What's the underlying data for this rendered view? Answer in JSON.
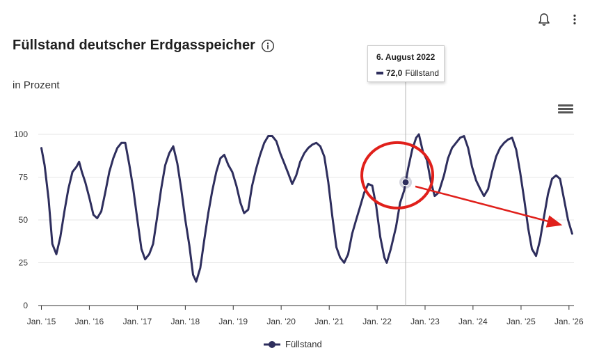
{
  "header": {
    "title": "Füllstand deutscher Erdgasspeicher",
    "subtitle": "in Prozent"
  },
  "icons": {
    "bell": "bell-icon",
    "more": "more-vertical-icon",
    "info": "info-icon",
    "menu": "hamburger-menu-icon"
  },
  "tooltip": {
    "date": "6. August 2022",
    "value": "72,0",
    "series": "Füllstand"
  },
  "colors": {
    "series": "#2e2e5d",
    "annotation": "#e0201b",
    "grid": "#e6e6e6",
    "crosshair": "#b3b3b3"
  },
  "chart_data": {
    "type": "line",
    "xlabel": "",
    "ylabel": "",
    "ylim": [
      0,
      100
    ],
    "yticks": [
      0,
      25,
      50,
      75,
      100
    ],
    "xtick_labels": [
      "Jan. '15",
      "Jan. '16",
      "Jan. '17",
      "Jan. '18",
      "Jan. '19",
      "Jan. '20",
      "Jan. '21",
      "Jan. '22",
      "Jan. '23",
      "Jan. '24",
      "Jan. '25",
      "Jan. '26"
    ],
    "legend": {
      "position": "bottom-center",
      "entries": [
        "Füllstand"
      ]
    },
    "grid": "horizontal",
    "highlight": {
      "date": "2022-08-06",
      "value": 72.0
    },
    "series": [
      {
        "name": "Füllstand",
        "points": [
          [
            "2015-01-01",
            92
          ],
          [
            "2015-01-25",
            82
          ],
          [
            "2015-02-25",
            62
          ],
          [
            "2015-03-25",
            36
          ],
          [
            "2015-04-25",
            30
          ],
          [
            "2015-05-25",
            40
          ],
          [
            "2015-06-25",
            55
          ],
          [
            "2015-07-25",
            68
          ],
          [
            "2015-08-25",
            78
          ],
          [
            "2015-09-25",
            81
          ],
          [
            "2015-10-15",
            84
          ],
          [
            "2015-11-05",
            78
          ],
          [
            "2015-12-01",
            72
          ],
          [
            "2016-01-01",
            63
          ],
          [
            "2016-02-01",
            53
          ],
          [
            "2016-03-01",
            51
          ],
          [
            "2016-04-01",
            55
          ],
          [
            "2016-05-01",
            66
          ],
          [
            "2016-06-01",
            78
          ],
          [
            "2016-07-01",
            86
          ],
          [
            "2016-08-01",
            92
          ],
          [
            "2016-09-01",
            95
          ],
          [
            "2016-10-01",
            95
          ],
          [
            "2016-11-01",
            82
          ],
          [
            "2016-12-01",
            68
          ],
          [
            "2017-01-01",
            50
          ],
          [
            "2017-02-01",
            33
          ],
          [
            "2017-03-01",
            27
          ],
          [
            "2017-04-01",
            30
          ],
          [
            "2017-05-01",
            36
          ],
          [
            "2017-06-01",
            52
          ],
          [
            "2017-07-01",
            68
          ],
          [
            "2017-08-01",
            82
          ],
          [
            "2017-09-01",
            89
          ],
          [
            "2017-10-01",
            93
          ],
          [
            "2017-11-01",
            83
          ],
          [
            "2017-12-01",
            68
          ],
          [
            "2018-01-01",
            50
          ],
          [
            "2018-02-01",
            35
          ],
          [
            "2018-03-01",
            18
          ],
          [
            "2018-03-25",
            14
          ],
          [
            "2018-04-25",
            22
          ],
          [
            "2018-05-25",
            38
          ],
          [
            "2018-06-25",
            54
          ],
          [
            "2018-07-25",
            67
          ],
          [
            "2018-08-25",
            78
          ],
          [
            "2018-09-25",
            86
          ],
          [
            "2018-10-25",
            88
          ],
          [
            "2018-11-25",
            82
          ],
          [
            "2018-12-25",
            78
          ],
          [
            "2019-01-25",
            70
          ],
          [
            "2019-02-25",
            60
          ],
          [
            "2019-03-25",
            54
          ],
          [
            "2019-04-25",
            56
          ],
          [
            "2019-05-25",
            70
          ],
          [
            "2019-06-25",
            80
          ],
          [
            "2019-07-25",
            88
          ],
          [
            "2019-08-25",
            95
          ],
          [
            "2019-09-25",
            99
          ],
          [
            "2019-10-25",
            99
          ],
          [
            "2019-11-25",
            96
          ],
          [
            "2019-12-25",
            89
          ],
          [
            "2020-01-25",
            83
          ],
          [
            "2020-02-25",
            77
          ],
          [
            "2020-03-25",
            71
          ],
          [
            "2020-04-25",
            76
          ],
          [
            "2020-05-25",
            84
          ],
          [
            "2020-06-25",
            89
          ],
          [
            "2020-07-25",
            92
          ],
          [
            "2020-08-25",
            94
          ],
          [
            "2020-09-25",
            95
          ],
          [
            "2020-10-25",
            93
          ],
          [
            "2020-11-25",
            87
          ],
          [
            "2020-12-25",
            72
          ],
          [
            "2021-01-25",
            52
          ],
          [
            "2021-02-25",
            34
          ],
          [
            "2021-03-25",
            28
          ],
          [
            "2021-04-25",
            25
          ],
          [
            "2021-05-25",
            30
          ],
          [
            "2021-06-25",
            42
          ],
          [
            "2021-07-25",
            50
          ],
          [
            "2021-08-25",
            58
          ],
          [
            "2021-09-25",
            66
          ],
          [
            "2021-10-25",
            71
          ],
          [
            "2021-11-25",
            70
          ],
          [
            "2021-12-25",
            58
          ],
          [
            "2022-01-25",
            40
          ],
          [
            "2022-02-25",
            28
          ],
          [
            "2022-03-15",
            25
          ],
          [
            "2022-04-15",
            33
          ],
          [
            "2022-05-25",
            46
          ],
          [
            "2022-06-25",
            60
          ],
          [
            "2022-07-25",
            67
          ],
          [
            "2022-08-06",
            72
          ],
          [
            "2022-08-25",
            80
          ],
          [
            "2022-09-25",
            91
          ],
          [
            "2022-10-25",
            98
          ],
          [
            "2022-11-15",
            100
          ],
          [
            "2022-12-15",
            90
          ],
          [
            "2023-01-15",
            85
          ],
          [
            "2023-02-15",
            72
          ],
          [
            "2023-03-15",
            64
          ],
          [
            "2023-04-15",
            66
          ],
          [
            "2023-05-25",
            76
          ],
          [
            "2023-06-25",
            86
          ],
          [
            "2023-07-25",
            92
          ],
          [
            "2023-08-25",
            95
          ],
          [
            "2023-09-25",
            98
          ],
          [
            "2023-10-25",
            99
          ],
          [
            "2023-11-25",
            92
          ],
          [
            "2023-12-25",
            81
          ],
          [
            "2024-01-25",
            73
          ],
          [
            "2024-02-25",
            68
          ],
          [
            "2024-03-25",
            64
          ],
          [
            "2024-04-25",
            68
          ],
          [
            "2024-05-25",
            78
          ],
          [
            "2024-06-25",
            87
          ],
          [
            "2024-07-25",
            92
          ],
          [
            "2024-08-25",
            95
          ],
          [
            "2024-09-25",
            97
          ],
          [
            "2024-10-25",
            98
          ],
          [
            "2024-11-25",
            91
          ],
          [
            "2024-12-25",
            78
          ],
          [
            "2025-01-25",
            62
          ],
          [
            "2025-02-25",
            45
          ],
          [
            "2025-03-25",
            33
          ],
          [
            "2025-04-25",
            29
          ],
          [
            "2025-05-25",
            38
          ],
          [
            "2025-06-25",
            52
          ],
          [
            "2025-07-25",
            65
          ],
          [
            "2025-08-25",
            74
          ],
          [
            "2025-09-25",
            76
          ],
          [
            "2025-10-25",
            74
          ],
          [
            "2025-11-25",
            62
          ],
          [
            "2025-12-25",
            50
          ],
          [
            "2026-01-25",
            42
          ]
        ]
      }
    ],
    "annotation": {
      "type": "circle-and-arrow",
      "circle_around": "2022-08-06",
      "arrow_from": "2022-08-06",
      "arrow_to": "2026-01-25"
    }
  }
}
